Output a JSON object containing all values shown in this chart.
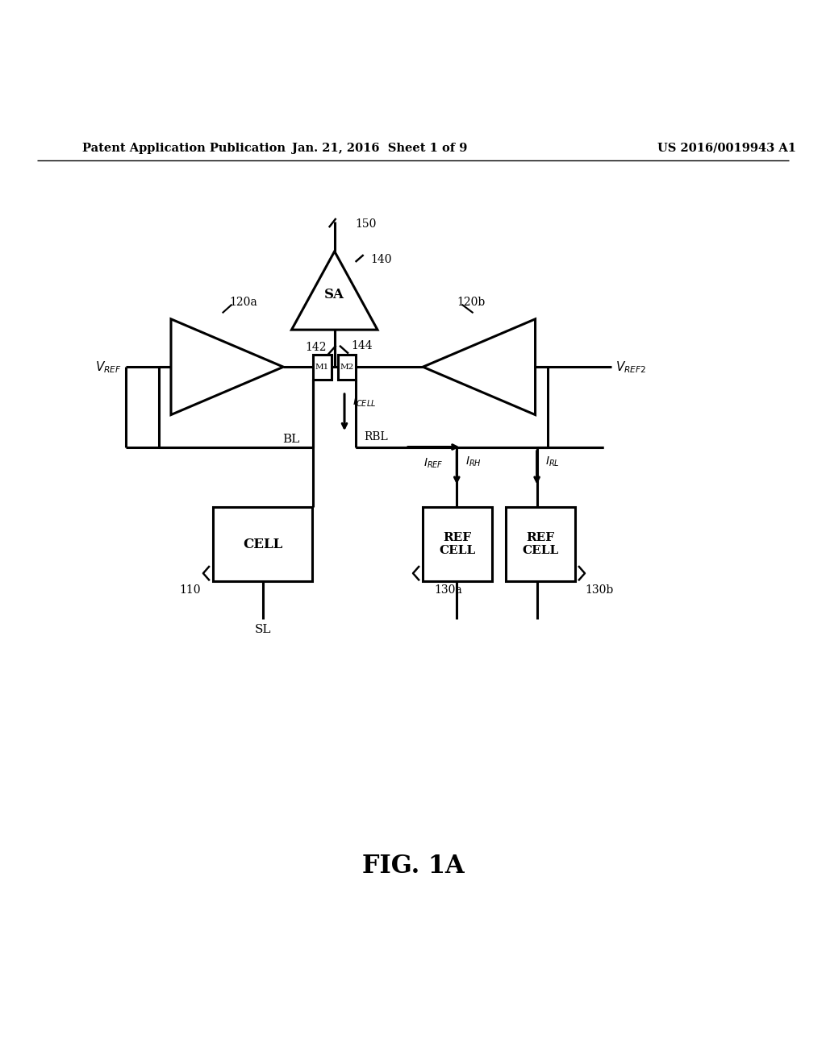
{
  "bg": "#ffffff",
  "lc": "#000000",
  "lw": 2.2,
  "header_left": "Patent Application Publication",
  "header_center": "Jan. 21, 2016  Sheet 1 of 9",
  "header_right": "US 2016/0019943 A1",
  "fig_label": "FIG. 1A",
  "sa_label": "SA",
  "cell_label": "CELL",
  "ref_cell_label": "REF\nCELL",
  "label_150": "150",
  "label_140": "140",
  "label_144": "144",
  "label_142": "142",
  "label_120a": "120a",
  "label_120b": "120b",
  "label_M1": "M1",
  "label_M2": "M2",
  "label_BL": "BL",
  "label_RBL": "RBL",
  "label_IREF": "I_{REF}",
  "label_ICELL": "I_{CELL}",
  "label_IRH": "I_{RH}",
  "label_IRL": "I_{RL}",
  "label_110": "110",
  "label_130a": "130a",
  "label_130b": "130b",
  "label_SL": "SL"
}
